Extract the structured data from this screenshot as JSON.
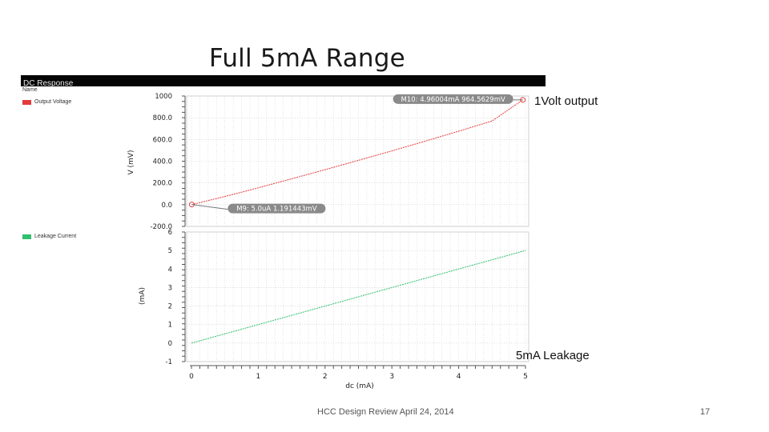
{
  "slide": {
    "title": "Full 5mA Range",
    "annotation_top": "1Volt output",
    "annotation_bottom": "5mA Leakage",
    "footer_text": "HCC Design Review  April 24, 2014",
    "page_number": "17"
  },
  "screenshot": {
    "header_title": "DC Response",
    "name_column_label": "Name"
  },
  "colors": {
    "voltage_series": "#e23b3b",
    "leakage_series": "#2fbf6e",
    "grid": "#c8c8c8",
    "marker_label_bg": "#8a8a8a"
  },
  "chart_data": [
    {
      "type": "line",
      "ylabel": "V (mV)",
      "ylim": [
        -200,
        1000
      ],
      "yticks": [
        "1000",
        "800.0",
        "600.0",
        "400.0",
        "200.0",
        "0.0",
        "-200.0"
      ],
      "ytick_values": [
        1000,
        800,
        600,
        400,
        200,
        0,
        -200
      ],
      "xlim": [
        0,
        5
      ],
      "grid": true,
      "series": [
        {
          "name": "Output Voltage",
          "x": [
            0.005,
            0.5,
            1.0,
            1.5,
            2.0,
            2.5,
            3.0,
            3.5,
            4.0,
            4.5,
            4.96
          ],
          "y": [
            1.19,
            75,
            155,
            238,
            322,
            408,
            495,
            585,
            676,
            770,
            964.56
          ]
        }
      ],
      "markers": [
        {
          "label": "M10: 4.96004mA 964.5629mV",
          "x": 4.96004,
          "y": 964.5629,
          "side": "left"
        },
        {
          "label": "M9: 5.0uA 1.191443mV",
          "x": 0.005,
          "y": 1.191443,
          "side": "right"
        }
      ]
    },
    {
      "type": "line",
      "ylabel": "(mA)",
      "xlabel": "dc (mA)",
      "ylim": [
        -1,
        6
      ],
      "yticks": [
        "6",
        "5",
        "4",
        "3",
        "2",
        "1",
        "0",
        "-1"
      ],
      "ytick_values": [
        6,
        5,
        4,
        3,
        2,
        1,
        0,
        -1
      ],
      "xlim": [
        0,
        5
      ],
      "xticks": [
        "0",
        "1",
        "2",
        "3",
        "4",
        "5"
      ],
      "xtick_values": [
        0,
        1,
        2,
        3,
        4,
        5
      ],
      "grid": true,
      "series": [
        {
          "name": "Leakage Current",
          "x": [
            0,
            5
          ],
          "y": [
            0,
            5
          ]
        }
      ]
    }
  ]
}
